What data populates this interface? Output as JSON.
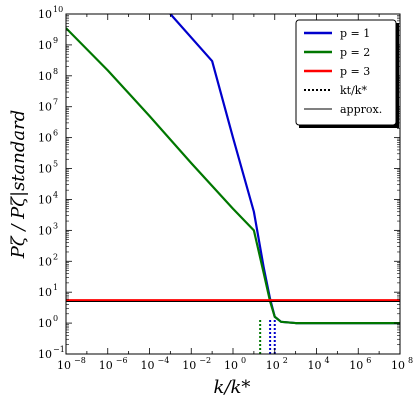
{
  "chart_data": {
    "type": "line",
    "xlabel": "k/k*",
    "ylabel": "Pζ / Pζ|standard",
    "xscale": "log",
    "yscale": "log",
    "xlim": [
      1e-08,
      100000000.0
    ],
    "ylim": [
      0.1,
      10000000000.0
    ],
    "x_tick_exponents": [
      -8,
      -6,
      -4,
      -2,
      0,
      2,
      4,
      6,
      8
    ],
    "y_tick_exponents": [
      -1,
      0,
      1,
      2,
      3,
      4,
      5,
      6,
      7,
      8,
      9,
      10
    ],
    "tick_base": "10",
    "legend_position": "top-right",
    "series": [
      {
        "name": "p = 1",
        "color": "#0000cc",
        "style": "solid",
        "points": [
          [
            0.001,
            10000000000.0
          ],
          [
            0.1,
            300000000.0
          ],
          [
            1.0,
            1000000.0
          ],
          [
            10.0,
            4000.0
          ],
          [
            30.0,
            60.0
          ],
          [
            60.0,
            6
          ],
          [
            100.0,
            1.6
          ],
          [
            200.0,
            1.1
          ],
          [
            1000.0,
            1.0
          ],
          [
            100000000.0,
            1.0
          ]
        ]
      },
      {
        "name": "p = 2",
        "color": "#007700",
        "style": "solid",
        "points": [
          [
            1e-08,
            3500000000.0
          ],
          [
            1e-06,
            150000000.0
          ],
          [
            0.0001,
            5000000.0
          ],
          [
            0.01,
            150000.0
          ],
          [
            1.0,
            5000.0
          ],
          [
            10.0,
            1000.0
          ],
          [
            30.0,
            40.0
          ],
          [
            60.0,
            5
          ],
          [
            100.0,
            1.6
          ],
          [
            200.0,
            1.1
          ],
          [
            1000.0,
            1.0
          ],
          [
            100000000.0,
            1.0
          ]
        ]
      },
      {
        "name": "p = 3",
        "color": "#ff0000",
        "style": "solid",
        "points": [
          [
            1e-08,
            5.5
          ],
          [
            100000000.0,
            5.5
          ]
        ]
      },
      {
        "name": "kt/k*",
        "color": "#000000",
        "style": "dotted",
        "markers": [
          {
            "color": "#007700",
            "x": 20.0,
            "y_top": 1.3
          },
          {
            "color": "#0000cc",
            "x": 60.0,
            "y_top": 1.3
          },
          {
            "color": "#0000cc",
            "x": 100.0,
            "y_top": 1.3
          }
        ]
      },
      {
        "name": "approx.",
        "color": "#000000",
        "style": "thin",
        "points": [
          [
            1e-08,
            5.0
          ],
          [
            100000000.0,
            5.0
          ]
        ]
      }
    ],
    "legend": [
      {
        "label": "p = 1",
        "color": "#0000cc",
        "style": "solid"
      },
      {
        "label": "p = 2",
        "color": "#007700",
        "style": "solid"
      },
      {
        "label": "p = 3",
        "color": "#ff0000",
        "style": "solid"
      },
      {
        "label": "kt/k*",
        "color": "#000000",
        "style": "dotted"
      },
      {
        "label": "approx.",
        "color": "#000000",
        "style": "thin"
      }
    ]
  }
}
